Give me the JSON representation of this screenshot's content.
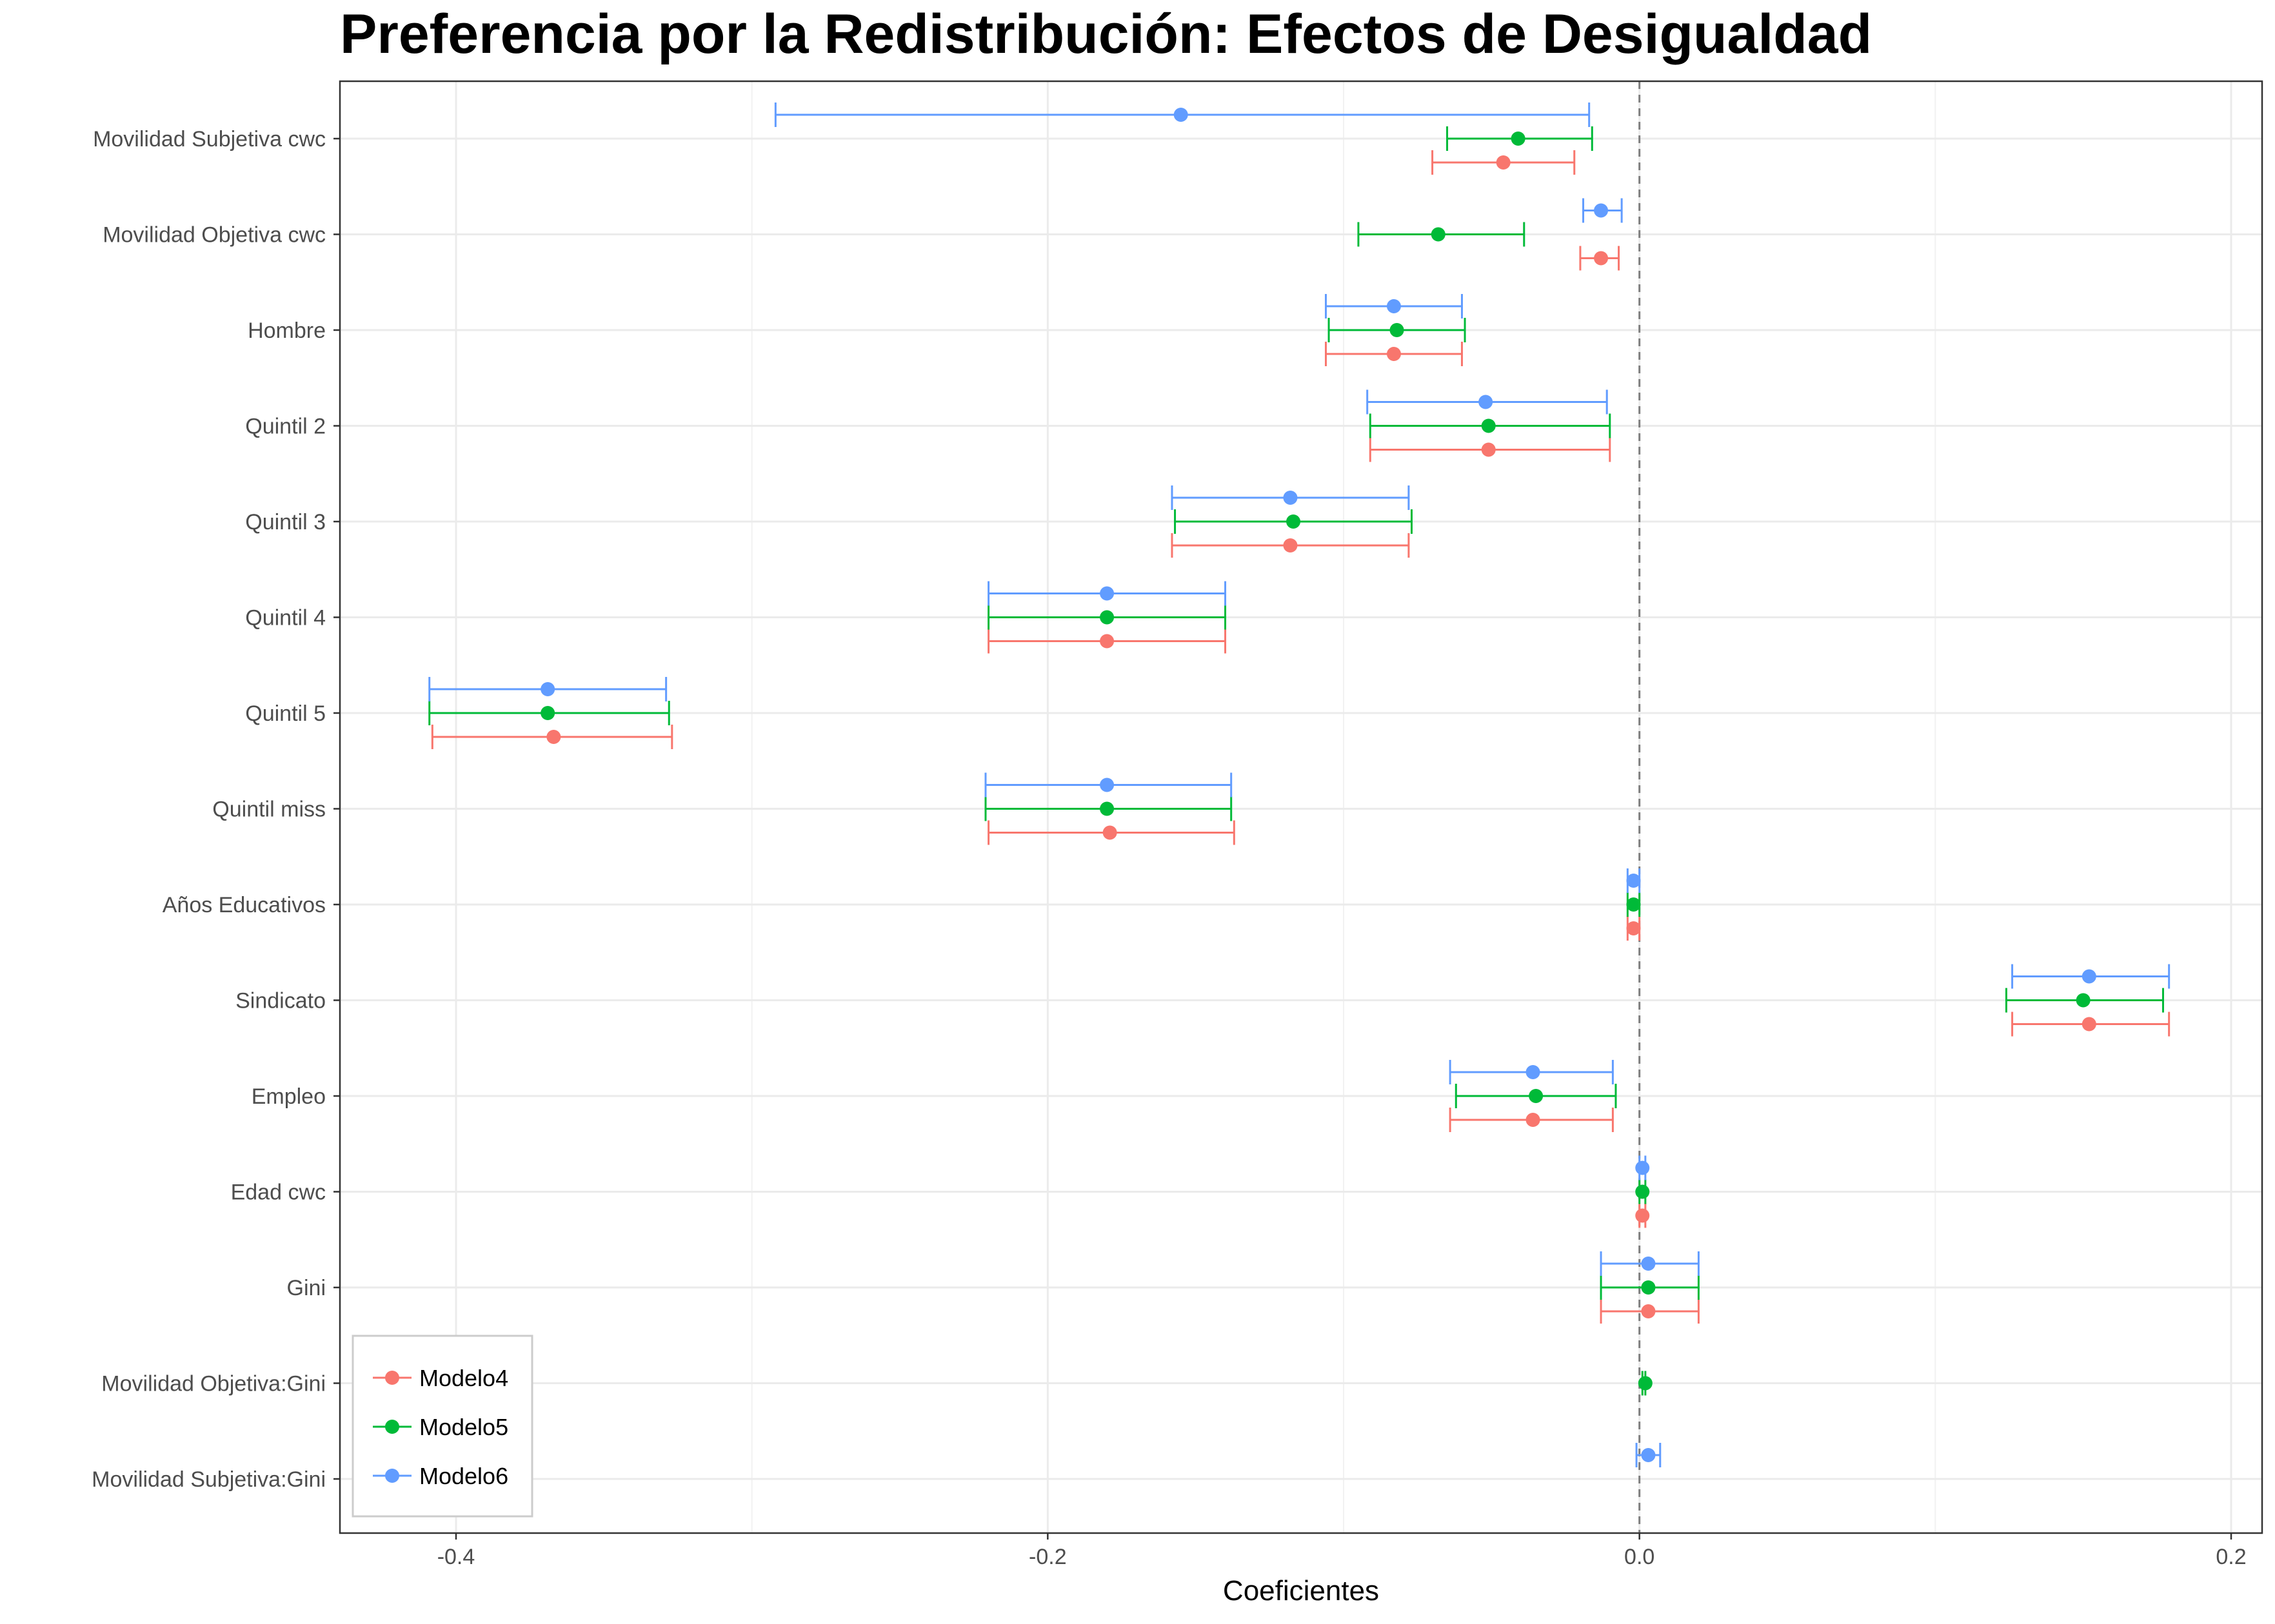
{
  "chart_data": {
    "type": "scatter",
    "subtype": "coefficient-errorbar",
    "title": "Preferencia por la Redistribución: Efectos de Desigualdad",
    "xlabel": "Coeficientes",
    "ylabel": "",
    "xlim": [
      -0.44,
      0.2
    ],
    "xticks": [
      -0.4,
      -0.2,
      0.0,
      0.2
    ],
    "xtick_labels": [
      "-0.4",
      "-0.2",
      "0.0",
      "0.2"
    ],
    "reference_line": 0.0,
    "grid": true,
    "legend_position": "bottom-left",
    "categories": [
      "Movilidad Subjetiva cwc",
      "Movilidad Objetiva cwc",
      "Hombre",
      "Quintil 2",
      "Quintil 3",
      "Quintil 4",
      "Quintil 5",
      "Quintil miss",
      "Años Educativos",
      "Sindicato",
      "Empleo",
      "Edad cwc",
      "Gini",
      "Movilidad Objetiva:Gini",
      "Movilidad Subjetiva:Gini"
    ],
    "series": [
      {
        "name": "Modelo4",
        "color": "#F8766D",
        "offset": -1,
        "points": [
          {
            "category": "Movilidad Subjetiva cwc",
            "estimate": -0.046,
            "low": -0.07,
            "high": -0.022
          },
          {
            "category": "Movilidad Objetiva cwc",
            "estimate": -0.013,
            "low": -0.02,
            "high": -0.007
          },
          {
            "category": "Hombre",
            "estimate": -0.083,
            "low": -0.106,
            "high": -0.06
          },
          {
            "category": "Quintil 2",
            "estimate": -0.051,
            "low": -0.091,
            "high": -0.01
          },
          {
            "category": "Quintil 3",
            "estimate": -0.118,
            "low": -0.158,
            "high": -0.078
          },
          {
            "category": "Quintil 4",
            "estimate": -0.18,
            "low": -0.22,
            "high": -0.14
          },
          {
            "category": "Quintil 5",
            "estimate": -0.367,
            "low": -0.408,
            "high": -0.327
          },
          {
            "category": "Quintil miss",
            "estimate": -0.179,
            "low": -0.22,
            "high": -0.137
          },
          {
            "category": "Años Educativos",
            "estimate": -0.002,
            "low": -0.004,
            "high": 0.0
          },
          {
            "category": "Sindicato",
            "estimate": 0.152,
            "low": 0.126,
            "high": 0.179
          },
          {
            "category": "Empleo",
            "estimate": -0.036,
            "low": -0.064,
            "high": -0.009
          },
          {
            "category": "Edad cwc",
            "estimate": 0.001,
            "low": 0.0,
            "high": 0.002
          },
          {
            "category": "Gini",
            "estimate": 0.003,
            "low": -0.013,
            "high": 0.02
          }
        ]
      },
      {
        "name": "Modelo5",
        "color": "#00BA38",
        "offset": 0,
        "points": [
          {
            "category": "Movilidad Subjetiva cwc",
            "estimate": -0.041,
            "low": -0.065,
            "high": -0.016
          },
          {
            "category": "Movilidad Objetiva cwc",
            "estimate": -0.068,
            "low": -0.095,
            "high": -0.039
          },
          {
            "category": "Hombre",
            "estimate": -0.082,
            "low": -0.105,
            "high": -0.059
          },
          {
            "category": "Quintil 2",
            "estimate": -0.051,
            "low": -0.091,
            "high": -0.01
          },
          {
            "category": "Quintil 3",
            "estimate": -0.117,
            "low": -0.157,
            "high": -0.077
          },
          {
            "category": "Quintil 4",
            "estimate": -0.18,
            "low": -0.22,
            "high": -0.14
          },
          {
            "category": "Quintil 5",
            "estimate": -0.369,
            "low": -0.409,
            "high": -0.328
          },
          {
            "category": "Quintil miss",
            "estimate": -0.18,
            "low": -0.221,
            "high": -0.138
          },
          {
            "category": "Años Educativos",
            "estimate": -0.002,
            "low": -0.004,
            "high": 0.0
          },
          {
            "category": "Sindicato",
            "estimate": 0.15,
            "low": 0.124,
            "high": 0.177
          },
          {
            "category": "Empleo",
            "estimate": -0.035,
            "low": -0.062,
            "high": -0.008
          },
          {
            "category": "Edad cwc",
            "estimate": 0.001,
            "low": 0.0,
            "high": 0.002
          },
          {
            "category": "Gini",
            "estimate": 0.003,
            "low": -0.013,
            "high": 0.02
          },
          {
            "category": "Movilidad Objetiva:Gini",
            "estimate": 0.002,
            "low": 0.001,
            "high": 0.002
          }
        ]
      },
      {
        "name": "Modelo6",
        "color": "#619CFF",
        "offset": 1,
        "points": [
          {
            "category": "Movilidad Subjetiva cwc",
            "estimate": -0.155,
            "low": -0.292,
            "high": -0.017
          },
          {
            "category": "Movilidad Objetiva cwc",
            "estimate": -0.013,
            "low": -0.019,
            "high": -0.006
          },
          {
            "category": "Hombre",
            "estimate": -0.083,
            "low": -0.106,
            "high": -0.06
          },
          {
            "category": "Quintil 2",
            "estimate": -0.052,
            "low": -0.092,
            "high": -0.011
          },
          {
            "category": "Quintil 3",
            "estimate": -0.118,
            "low": -0.158,
            "high": -0.078
          },
          {
            "category": "Quintil 4",
            "estimate": -0.18,
            "low": -0.22,
            "high": -0.14
          },
          {
            "category": "Quintil 5",
            "estimate": -0.369,
            "low": -0.409,
            "high": -0.329
          },
          {
            "category": "Quintil miss",
            "estimate": -0.18,
            "low": -0.221,
            "high": -0.138
          },
          {
            "category": "Años Educativos",
            "estimate": -0.002,
            "low": -0.004,
            "high": 0.0
          },
          {
            "category": "Sindicato",
            "estimate": 0.152,
            "low": 0.126,
            "high": 0.179
          },
          {
            "category": "Empleo",
            "estimate": -0.036,
            "low": -0.064,
            "high": -0.009
          },
          {
            "category": "Edad cwc",
            "estimate": 0.001,
            "low": 0.0,
            "high": 0.002
          },
          {
            "category": "Gini",
            "estimate": 0.003,
            "low": -0.013,
            "high": 0.02
          },
          {
            "category": "Movilidad Subjetiva:Gini",
            "estimate": 0.003,
            "low": -0.001,
            "high": 0.007
          }
        ]
      }
    ]
  }
}
